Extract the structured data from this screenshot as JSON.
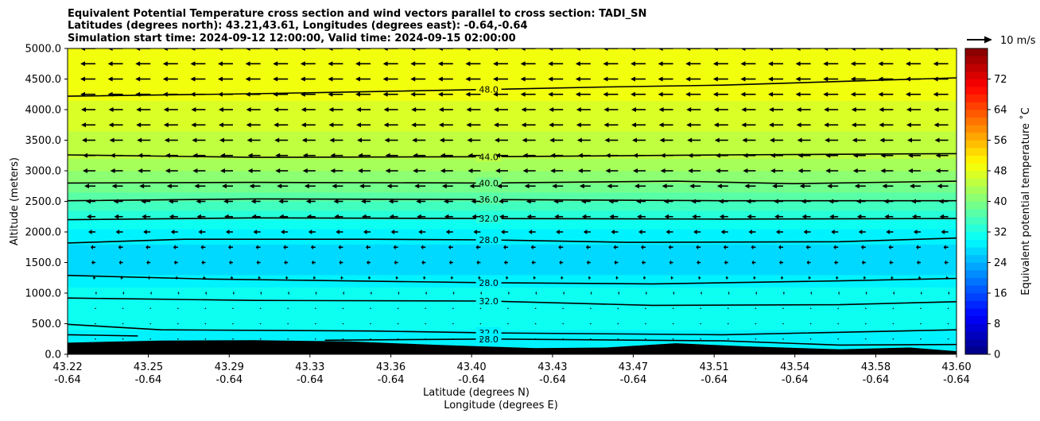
{
  "chart_data": {
    "type": "contour-cross-section",
    "title_lines": [
      "Equivalent Potential Temperature cross section and wind vectors parallel to cross section: TADI_SN",
      "Latitudes (degrees north): 43.21,43.61, Longitudes (degrees east): -0.64,-0.64",
      "Simulation start time: 2024-09-12 12:00:00, Valid time: 2024-09-15 02:00:00"
    ],
    "ylabel": "Altitude (meters)",
    "xlabel_line1": "Latitude (degrees N)",
    "xlabel_line2": "Longitude (degrees E)",
    "ylim": [
      0,
      5000
    ],
    "yticks": [
      "0.0",
      "500.0",
      "1000.0",
      "1500.0",
      "2000.0",
      "2500.0",
      "3000.0",
      "3500.0",
      "4000.0",
      "4500.0",
      "5000.0"
    ],
    "ytick_values": [
      0,
      500,
      1000,
      1500,
      2000,
      2500,
      3000,
      3500,
      4000,
      4500,
      5000
    ],
    "xlim": [
      43.22,
      43.6
    ],
    "xticks": [
      {
        "lat": "43.22",
        "lon": "-0.64",
        "value": 43.22
      },
      {
        "lat": "43.25",
        "lon": "-0.64",
        "value": 43.2545
      },
      {
        "lat": "43.29",
        "lon": "-0.64",
        "value": 43.2891
      },
      {
        "lat": "43.33",
        "lon": "-0.64",
        "value": 43.3236
      },
      {
        "lat": "43.36",
        "lon": "-0.64",
        "value": 43.3582
      },
      {
        "lat": "43.40",
        "lon": "-0.64",
        "value": 43.3927
      },
      {
        "lat": "43.43",
        "lon": "-0.64",
        "value": 43.4273
      },
      {
        "lat": "43.47",
        "lon": "-0.64",
        "value": 43.4618
      },
      {
        "lat": "43.51",
        "lon": "-0.64",
        "value": 43.4964
      },
      {
        "lat": "43.54",
        "lon": "-0.64",
        "value": 43.5309
      },
      {
        "lat": "43.58",
        "lon": "-0.64",
        "value": 43.5655
      },
      {
        "lat": "43.60",
        "lon": "-0.64",
        "value": 43.6
      }
    ],
    "theta_e_profile": [
      {
        "z": 0,
        "t": 29
      },
      {
        "z": 200,
        "t": 28
      },
      {
        "z": 500,
        "t": 31
      },
      {
        "z": 900,
        "t": 32
      },
      {
        "z": 1300,
        "t": 28
      },
      {
        "z": 1600,
        "t": 27
      },
      {
        "z": 1900,
        "t": 28.5
      },
      {
        "z": 2250,
        "t": 32.5
      },
      {
        "z": 2550,
        "t": 36.5
      },
      {
        "z": 2850,
        "t": 40.5
      },
      {
        "z": 3250,
        "t": 44.5
      },
      {
        "z": 3800,
        "t": 46.5
      },
      {
        "z": 4300,
        "t": 48.5
      },
      {
        "z": 5000,
        "t": 50
      }
    ],
    "contours": [
      {
        "label": "48.0",
        "points": [
          [
            43.22,
            4220
          ],
          [
            43.3,
            4260
          ],
          [
            43.4,
            4330
          ],
          [
            43.45,
            4370
          ],
          [
            43.5,
            4400
          ],
          [
            43.6,
            4520
          ]
        ]
      },
      {
        "label": "44.0",
        "points": [
          [
            43.22,
            3260
          ],
          [
            43.3,
            3220
          ],
          [
            43.4,
            3230
          ],
          [
            43.5,
            3260
          ],
          [
            43.6,
            3280
          ]
        ]
      },
      {
        "label": "40.0",
        "points": [
          [
            43.22,
            2800
          ],
          [
            43.3,
            2810
          ],
          [
            43.4,
            2800
          ],
          [
            43.48,
            2830
          ],
          [
            43.53,
            2790
          ],
          [
            43.6,
            2830
          ]
        ]
      },
      {
        "label": "36.0",
        "points": [
          [
            43.22,
            2510
          ],
          [
            43.3,
            2540
          ],
          [
            43.4,
            2530
          ],
          [
            43.5,
            2510
          ],
          [
            43.6,
            2510
          ]
        ]
      },
      {
        "label": "32.0",
        "points": [
          [
            43.22,
            2200
          ],
          [
            43.3,
            2230
          ],
          [
            43.4,
            2220
          ],
          [
            43.5,
            2210
          ],
          [
            43.6,
            2220
          ]
        ]
      },
      {
        "label": "28.0",
        "points": [
          [
            43.22,
            1820
          ],
          [
            43.27,
            1880
          ],
          [
            43.35,
            1880
          ],
          [
            43.4,
            1870
          ],
          [
            43.46,
            1830
          ],
          [
            43.55,
            1840
          ],
          [
            43.6,
            1900
          ]
        ]
      },
      {
        "label": "28.0",
        "points": [
          [
            43.22,
            1290
          ],
          [
            43.28,
            1230
          ],
          [
            43.4,
            1170
          ],
          [
            43.47,
            1150
          ],
          [
            43.55,
            1200
          ],
          [
            43.6,
            1240
          ]
        ]
      },
      {
        "label": "32.0",
        "points": [
          [
            43.22,
            920
          ],
          [
            43.3,
            880
          ],
          [
            43.4,
            870
          ],
          [
            43.47,
            800
          ],
          [
            43.55,
            810
          ],
          [
            43.6,
            860
          ]
        ]
      },
      {
        "label": "32.0",
        "points": [
          [
            43.22,
            490
          ],
          [
            43.26,
            400
          ],
          [
            43.35,
            380
          ],
          [
            43.4,
            350
          ],
          [
            43.5,
            320
          ],
          [
            43.6,
            400
          ]
        ]
      },
      {
        "label": "28.0",
        "points": [
          [
            43.22,
            320
          ],
          [
            43.25,
            300
          ]
        ]
      },
      {
        "label": "28.0",
        "points": [
          [
            43.33,
            230
          ],
          [
            43.4,
            250
          ],
          [
            43.5,
            220
          ],
          [
            43.55,
            150
          ],
          [
            43.6,
            160
          ]
        ]
      }
    ],
    "terrain": [
      [
        43.22,
        190
      ],
      [
        43.26,
        225
      ],
      [
        43.3,
        230
      ],
      [
        43.34,
        210
      ],
      [
        43.38,
        150
      ],
      [
        43.42,
        100
      ],
      [
        43.45,
        110
      ],
      [
        43.48,
        180
      ],
      [
        43.51,
        130
      ],
      [
        43.55,
        80
      ],
      [
        43.58,
        110
      ],
      [
        43.6,
        50
      ]
    ],
    "wind_u_profile": [
      {
        "z": 250,
        "u": 0
      },
      {
        "z": 500,
        "u": 0.3
      },
      {
        "z": 750,
        "u": 0.4
      },
      {
        "z": 1000,
        "u": 0.8
      },
      {
        "z": 1250,
        "u": -1.5
      },
      {
        "z": 1500,
        "u": -2.5
      },
      {
        "z": 1750,
        "u": -3
      },
      {
        "z": 2000,
        "u": -4.5
      },
      {
        "z": 2250,
        "u": -5.5
      },
      {
        "z": 2500,
        "u": -6
      },
      {
        "z": 2750,
        "u": -7
      },
      {
        "z": 3000,
        "u": -8
      },
      {
        "z": 3250,
        "u": -8
      },
      {
        "z": 3500,
        "u": -8.5
      },
      {
        "z": 3750,
        "u": -9
      },
      {
        "z": 4000,
        "u": -9
      },
      {
        "z": 4250,
        "u": -9.5
      },
      {
        "z": 4500,
        "u": -9.5
      },
      {
        "z": 4750,
        "u": -9.5
      },
      {
        "z": 5000,
        "u": -9.5
      }
    ],
    "quiver_key": "10 m/s",
    "quiver_ref_ms": 10,
    "colorbar": {
      "label": "Equivalent potential temperature ˚C",
      "min": 0,
      "max": 80,
      "step": 2,
      "ticks": [
        "0",
        "8",
        "16",
        "24",
        "32",
        "40",
        "48",
        "56",
        "64",
        "72"
      ],
      "tick_values": [
        0,
        8,
        16,
        24,
        32,
        40,
        48,
        56,
        64,
        72
      ],
      "colormap": "jet"
    }
  }
}
